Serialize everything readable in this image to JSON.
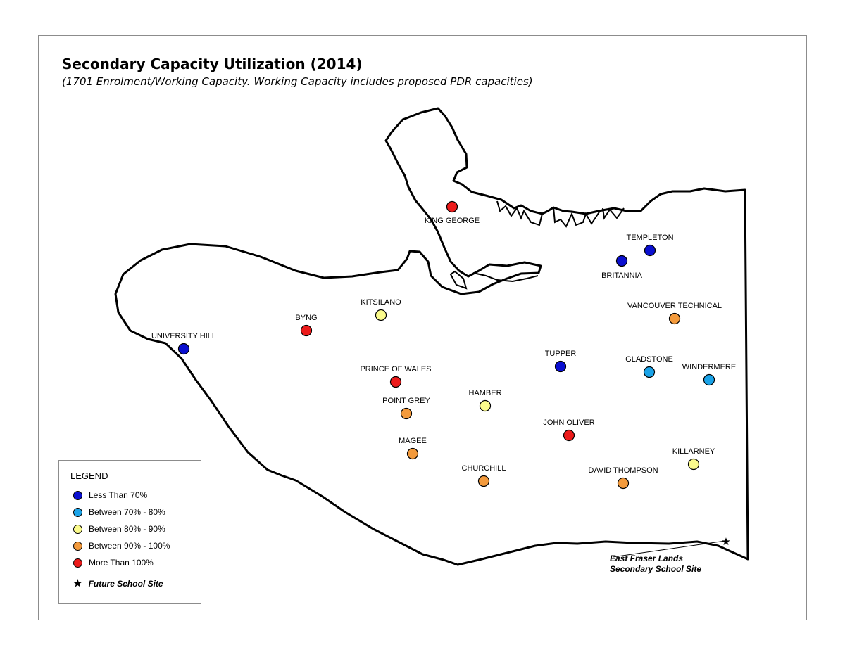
{
  "title": "Secondary Capacity Utilization (2014)",
  "subtitle": "(1701 Enrolment/Working Capacity. Working Capacity includes proposed PDR capacities)",
  "colors": {
    "less_than_70": "#0a0fd0",
    "between_70_80": "#1aa3e8",
    "between_80_90": "#fbfb8c",
    "between_90_100": "#f39a3c",
    "more_than_100": "#ec1a1a"
  },
  "legend": {
    "title": "LEGEND",
    "items": [
      {
        "label": "Less Than 70%",
        "category": "less_than_70"
      },
      {
        "label": "Between 70% - 80%",
        "category": "between_70_80"
      },
      {
        "label": "Between 80% - 90%",
        "category": "between_80_90"
      },
      {
        "label": "Between 90% - 100%",
        "category": "between_90_100"
      },
      {
        "label": "More Than 100%",
        "category": "more_than_100"
      }
    ],
    "future_label": "Future School Site",
    "future_icon": "star-icon"
  },
  "schools": [
    {
      "name": "KING GEORGE",
      "category": "more_than_100"
    },
    {
      "name": "TEMPLETON",
      "category": "less_than_70"
    },
    {
      "name": "BRITANNIA",
      "category": "less_than_70"
    },
    {
      "name": "KITSILANO",
      "category": "between_80_90"
    },
    {
      "name": "BYNG",
      "category": "more_than_100"
    },
    {
      "name": "UNIVERSITY HILL",
      "category": "less_than_70"
    },
    {
      "name": "VANCOUVER TECHNICAL",
      "category": "between_90_100"
    },
    {
      "name": "TUPPER",
      "category": "less_than_70"
    },
    {
      "name": "GLADSTONE",
      "category": "between_70_80"
    },
    {
      "name": "WINDERMERE",
      "category": "between_70_80"
    },
    {
      "name": "PRINCE OF WALES",
      "category": "more_than_100"
    },
    {
      "name": "HAMBER",
      "category": "between_80_90"
    },
    {
      "name": "POINT GREY",
      "category": "between_90_100"
    },
    {
      "name": "JOHN OLIVER",
      "category": "more_than_100"
    },
    {
      "name": "MAGEE",
      "category": "between_90_100"
    },
    {
      "name": "CHURCHILL",
      "category": "between_90_100"
    },
    {
      "name": "KILLARNEY",
      "category": "between_80_90"
    },
    {
      "name": "DAVID THOMPSON",
      "category": "between_90_100"
    }
  ],
  "future_site": {
    "label_line1": "East Fraser Lands",
    "label_line2": "Secondary School Site"
  }
}
